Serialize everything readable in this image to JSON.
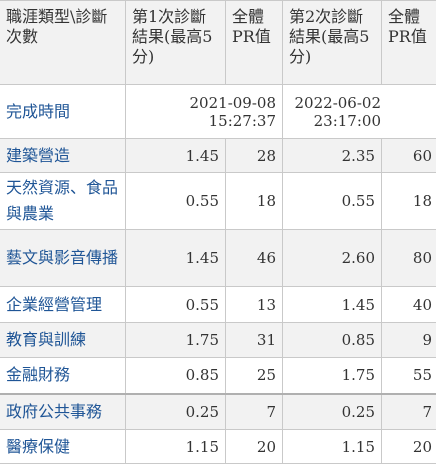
{
  "header": {
    "category": "職涯類型\\診斷次數",
    "first_result": "第1次診斷結果(最高5分)",
    "pr1": "全體PR值",
    "second_result": "第2次診斷結果(最高5分)",
    "pr2": "全體PR值"
  },
  "completion": {
    "label": "完成時間",
    "first_date": "2021-09-08",
    "first_time": "15:27:37",
    "second_date": "2022-06-02",
    "second_time": "23:17:00"
  },
  "rows": [
    {
      "category": "建築營造",
      "score1": "1.45",
      "pr1": "28",
      "score2": "2.35",
      "pr2": "60"
    },
    {
      "category": "天然資源、食品與農業",
      "score1": "0.55",
      "pr1": "18",
      "score2": "0.55",
      "pr2": "18"
    },
    {
      "category": "藝文與影音傳播",
      "score1": "1.45",
      "pr1": "46",
      "score2": "2.60",
      "pr2": "80"
    },
    {
      "category": "企業經營管理",
      "score1": "0.55",
      "pr1": "13",
      "score2": "1.45",
      "pr2": "40"
    },
    {
      "category": "教育與訓練",
      "score1": "1.75",
      "pr1": "31",
      "score2": "0.85",
      "pr2": "9"
    },
    {
      "category": "金融財務",
      "score1": "0.85",
      "pr1": "25",
      "score2": "1.75",
      "pr2": "55"
    },
    {
      "category": "政府公共事務",
      "score1": "0.25",
      "pr1": "7",
      "score2": "0.25",
      "pr2": "7"
    },
    {
      "category": "醫療保健",
      "score1": "1.15",
      "pr1": "20",
      "score2": "1.15",
      "pr2": "20"
    }
  ],
  "colors": {
    "category_link": "#1f5596",
    "header_bg": "#f2f2f2",
    "border": "#c9c9c9"
  }
}
